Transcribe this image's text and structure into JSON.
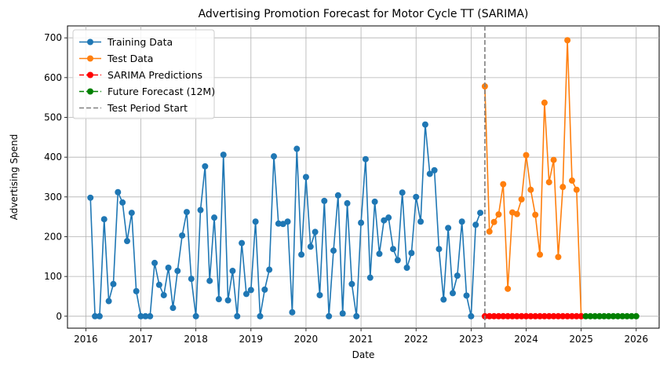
{
  "chart_data": {
    "type": "line",
    "title": "Advertising Promotion Forecast for Motor Cycle TT (SARIMA)",
    "xlabel": "Date",
    "ylabel": "Advertising Spend",
    "x_ticks": [
      "2016",
      "2017",
      "2018",
      "2019",
      "2020",
      "2021",
      "2022",
      "2023",
      "2024",
      "2025",
      "2026"
    ],
    "y_ticks": [
      "0",
      "100",
      "200",
      "300",
      "400",
      "500",
      "600",
      "700"
    ],
    "xlim": [
      "2015-09",
      "2026-06"
    ],
    "ylim": [
      -30,
      730
    ],
    "grid": true,
    "legend_position": "top-left",
    "series": [
      {
        "name": "Training Data",
        "color": "#1f77b4",
        "style": "solid-line-circle-markers",
        "start": "2016-02",
        "values": [
          298,
          0,
          0,
          244,
          38,
          81,
          312,
          286,
          189,
          260,
          63,
          0,
          0,
          0,
          134,
          79,
          53,
          122,
          21,
          114,
          203,
          262,
          94,
          0,
          267,
          377,
          89,
          248,
          43,
          406,
          40,
          114,
          0,
          184,
          56,
          66,
          238,
          0,
          67,
          117,
          402,
          233,
          232,
          238,
          10,
          421,
          155,
          350,
          175,
          212,
          53,
          290,
          0,
          165,
          304,
          7,
          284,
          81,
          0,
          235,
          395,
          97,
          288,
          157,
          241,
          248,
          169,
          141,
          311,
          122,
          159,
          300,
          238,
          482,
          358,
          367,
          169,
          42,
          222,
          58,
          102,
          238,
          52,
          0,
          230,
          260
        ]
      },
      {
        "name": "Test Data",
        "color": "#ff7f0e",
        "style": "solid-line-circle-markers",
        "start": "2023-04",
        "values": [
          578,
          213,
          237,
          256,
          332,
          69,
          261,
          257,
          294,
          405,
          318,
          255,
          155,
          537,
          337,
          393,
          149,
          325,
          694,
          341,
          318,
          0
        ]
      },
      {
        "name": "SARIMA Predictions",
        "color": "#ff0000",
        "style": "dashed-line-circle-markers",
        "start": "2023-04",
        "values": [
          0,
          0,
          0,
          0,
          0,
          0,
          0,
          0,
          0,
          0,
          0,
          0,
          0,
          0,
          0,
          0,
          0,
          0,
          0,
          0,
          0,
          0
        ]
      },
      {
        "name": "Future Forecast (12M)",
        "color": "#008000",
        "style": "dashed-line-circle-markers",
        "start": "2025-02",
        "values": [
          0,
          0,
          0,
          0,
          0,
          0,
          0,
          0,
          0,
          0,
          0,
          0
        ]
      }
    ],
    "vertical_line": {
      "name": "Test Period Start",
      "date": "2023-04",
      "color": "#808080",
      "style": "dashed"
    }
  }
}
